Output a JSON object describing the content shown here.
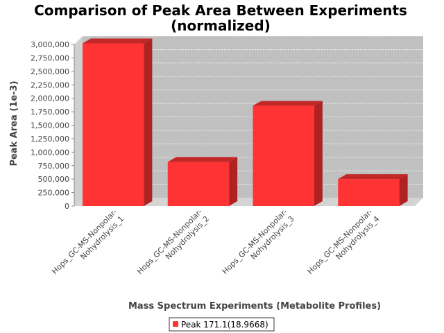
{
  "chart_data": {
    "type": "bar",
    "title_line1": "Comparison of Peak Area Between Experiments",
    "title_line2": "(normalized)",
    "xlabel": "Mass Spectrum Experiments (Metabolite Profiles)",
    "ylabel": "Peak Area (1e-3)",
    "categories": [
      [
        "Hops_GC-MS-Nonpolar-",
        "Nohydrolysis_1"
      ],
      [
        "Hops_GC-MS-Nonpolar-",
        "Nohydrolysis_2"
      ],
      [
        "Hops_GC-MS-Nonpolar-",
        "Nohydrolysis_3"
      ],
      [
        "Hops_GC-MS-Nonpolar-",
        "Nohydrolysis_4"
      ]
    ],
    "series": [
      {
        "name": "Peak 171.1(18.9668)",
        "color": "#ff3333",
        "values": [
          3020000,
          820000,
          1860000,
          500000
        ]
      }
    ],
    "ylim": [
      0,
      3000000
    ],
    "yticks": [
      0,
      250000,
      500000,
      750000,
      1000000,
      1250000,
      1500000,
      1750000,
      2000000,
      2250000,
      2500000,
      2750000,
      3000000
    ],
    "ytick_labels": [
      "0",
      "250,000",
      "500,000",
      "750,000",
      "1,000,000",
      "1,250,000",
      "1,500,000",
      "1,750,000",
      "2,000,000",
      "2,250,000",
      "2,500,000",
      "2,750,000",
      "3,000,000"
    ],
    "grid": true,
    "legend_position": "bottom",
    "plot_background": "#c0c0c0"
  }
}
